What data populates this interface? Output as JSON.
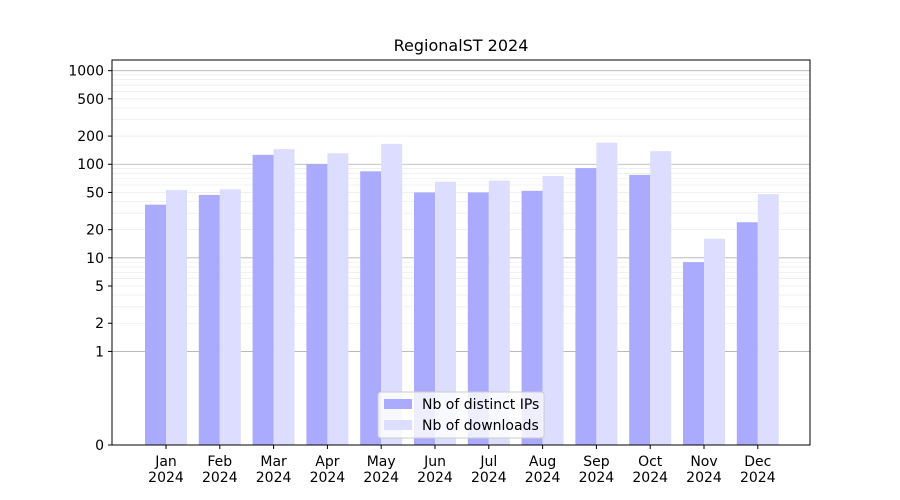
{
  "chart_data": {
    "type": "bar",
    "title": "RegionalST 2024",
    "xlabel": "",
    "ylabel": "",
    "y_scale": "symlog",
    "ylim": [
      0,
      1300
    ],
    "y_ticks": [
      "0",
      "1",
      "2",
      "5",
      "10",
      "20",
      "50",
      "100",
      "200",
      "500",
      "1000"
    ],
    "categories": [
      {
        "month": "Jan",
        "year": "2024"
      },
      {
        "month": "Feb",
        "year": "2024"
      },
      {
        "month": "Mar",
        "year": "2024"
      },
      {
        "month": "Apr",
        "year": "2024"
      },
      {
        "month": "May",
        "year": "2024"
      },
      {
        "month": "Jun",
        "year": "2024"
      },
      {
        "month": "Jul",
        "year": "2024"
      },
      {
        "month": "Aug",
        "year": "2024"
      },
      {
        "month": "Sep",
        "year": "2024"
      },
      {
        "month": "Oct",
        "year": "2024"
      },
      {
        "month": "Nov",
        "year": "2024"
      },
      {
        "month": "Dec",
        "year": "2024"
      }
    ],
    "series": [
      {
        "name": "Nb of distinct IPs",
        "color": "#aaaaff",
        "values": [
          37,
          47,
          126,
          100,
          84,
          50,
          50,
          52,
          91,
          77,
          9,
          24
        ]
      },
      {
        "name": "Nb of downloads",
        "color": "#ddddff",
        "values": [
          53,
          54,
          145,
          131,
          165,
          65,
          67,
          75,
          170,
          138,
          16,
          48
        ]
      }
    ],
    "grid": true,
    "legend_position": "bottom-center"
  }
}
